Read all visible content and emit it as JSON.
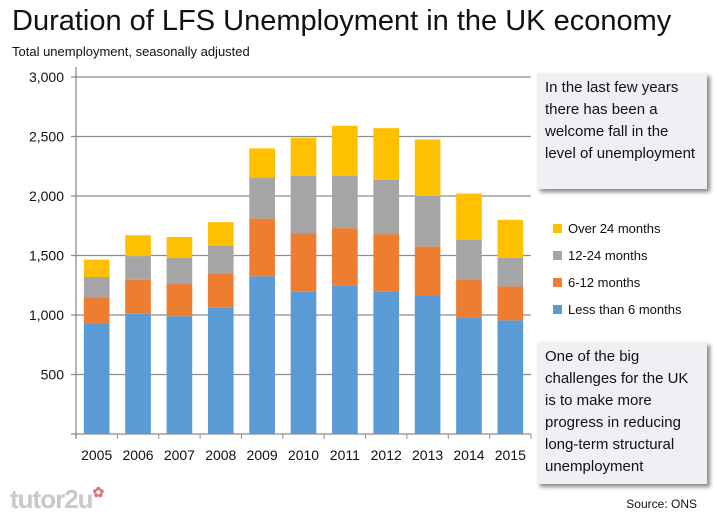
{
  "title": "Duration of LFS Unemployment in the UK economy",
  "subtitle": "Total unemployment, seasonally adjusted",
  "annotation_top": "In the last few years there has been a welcome fall in the level of unemployment",
  "annotation_bottom": "One of the big challenges for the UK is to make more progress in reducing long-term structural unemployment",
  "source": "Source: ONS",
  "logo": "tutor2u",
  "chart_data": {
    "type": "bar",
    "stacked": true,
    "categories": [
      "2005",
      "2006",
      "2007",
      "2008",
      "2009",
      "2010",
      "2011",
      "2012",
      "2013",
      "2014",
      "2015"
    ],
    "ylim": [
      0,
      3000
    ],
    "yticks": [
      "",
      "500",
      "1,000",
      "1,500",
      "2,000",
      "2,500",
      "3,000"
    ],
    "grid": true,
    "legend_position": "right",
    "series": [
      {
        "name": "Less than 6 months",
        "color": "#5b9bd5",
        "values": [
          925,
          1010,
          990,
          1065,
          1325,
          1195,
          1250,
          1200,
          1160,
          975,
          955
        ]
      },
      {
        "name": "6-12 months",
        "color": "#ed7d31",
        "values": [
          225,
          285,
          270,
          285,
          485,
          490,
          480,
          480,
          415,
          325,
          285
        ]
      },
      {
        "name": "12-24 months",
        "color": "#a5a5a5",
        "values": [
          170,
          200,
          220,
          230,
          345,
          485,
          440,
          455,
          425,
          330,
          240
        ]
      },
      {
        "name": "Over 24 months",
        "color": "#ffc000",
        "values": [
          145,
          175,
          175,
          200,
          245,
          320,
          420,
          435,
          475,
          390,
          320
        ]
      }
    ]
  }
}
